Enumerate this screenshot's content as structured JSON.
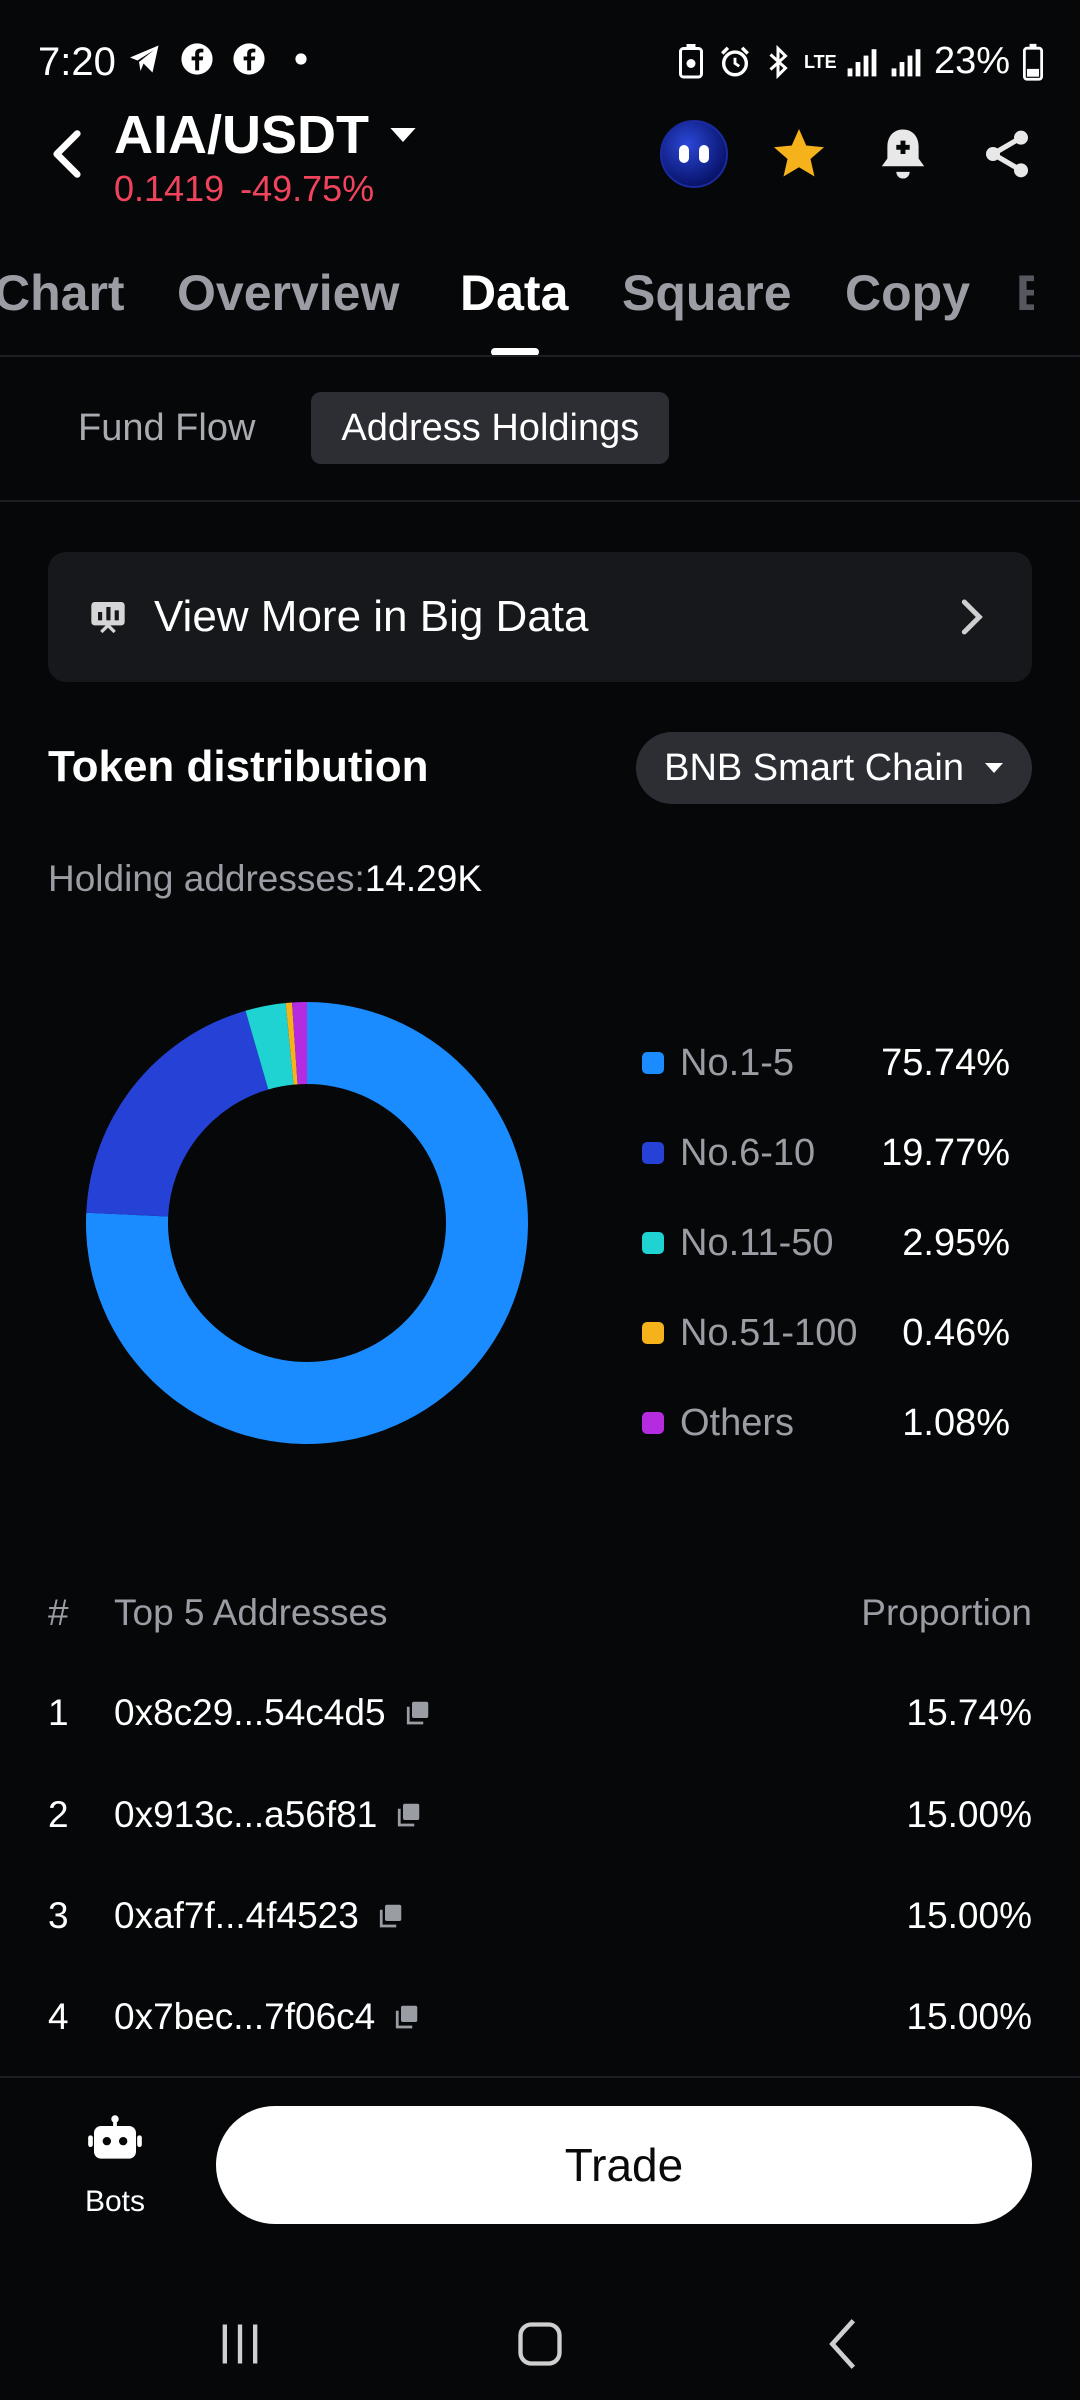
{
  "status_bar": {
    "time": "7:20",
    "battery": "23%",
    "network": "LTE"
  },
  "header": {
    "pair": "AIA/USDT",
    "price": "0.1419",
    "change": "-49.75%",
    "colors": {
      "negative": "#f0445d",
      "star": "#f6b21a"
    }
  },
  "tabs": [
    {
      "label": "Chart"
    },
    {
      "label": "Overview"
    },
    {
      "label": "Data",
      "active": true
    },
    {
      "label": "Square"
    },
    {
      "label": "Copy"
    },
    {
      "label": "E"
    }
  ],
  "subtabs": [
    {
      "label": "Fund Flow"
    },
    {
      "label": "Address Holdings",
      "active": true
    }
  ],
  "big_data": {
    "label": "View More in Big Data"
  },
  "distribution": {
    "title": "Token distribution",
    "chain": "BNB Smart Chain",
    "holding_label": "Holding addresses:",
    "holding_value": "14.29K"
  },
  "chart_data": {
    "type": "pie",
    "categories": [
      "No.1-5",
      "No.6-10",
      "No.11-50",
      "No.51-100",
      "Others"
    ],
    "values": [
      75.74,
      19.77,
      2.95,
      0.46,
      1.08
    ],
    "labels": [
      "75.74%",
      "19.77%",
      "2.95%",
      "0.46%",
      "1.08%"
    ],
    "colors": [
      "#1a8cff",
      "#2541d6",
      "#1fd3d3",
      "#f6b21a",
      "#b52be0"
    ],
    "donut": true,
    "legend": "right"
  },
  "table": {
    "col_rank": "#",
    "col_address": "Top 5 Addresses",
    "col_proportion": "Proportion",
    "rows": [
      {
        "rank": "1",
        "address": "0x8c29...54c4d5",
        "proportion": "15.74%"
      },
      {
        "rank": "2",
        "address": "0x913c...a56f81",
        "proportion": "15.00%"
      },
      {
        "rank": "3",
        "address": "0xaf7f...4f4523",
        "proportion": "15.00%"
      },
      {
        "rank": "4",
        "address": "0x7bec...7f06c4",
        "proportion": "15.00%"
      }
    ]
  },
  "bottom": {
    "bots_label": "Bots",
    "trade_label": "Trade"
  }
}
